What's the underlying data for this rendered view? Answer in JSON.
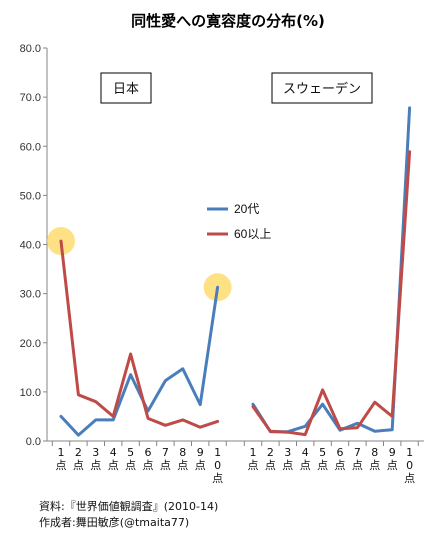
{
  "chart_data": {
    "type": "line",
    "title": "同性愛への寛容度の分布(%)",
    "ylim": [
      0,
      80
    ],
    "yticks": [
      "0.0",
      "10.0",
      "20.0",
      "30.0",
      "40.0",
      "50.0",
      "60.0",
      "70.0",
      "80.0"
    ],
    "grid": false,
    "legend_position": "center",
    "categories": [
      "1点",
      "2点",
      "3点",
      "4点",
      "5点",
      "6点",
      "7点",
      "8点",
      "9点",
      "10点"
    ],
    "panels": [
      {
        "label": "日本",
        "series": [
          {
            "name": "20代",
            "color": "#4a7ebb",
            "values": [
              5.0,
              1.2,
              4.3,
              4.3,
              13.5,
              6.1,
              12.3,
              14.7,
              7.4,
              31.3
            ]
          },
          {
            "name": "60以上",
            "color": "#be4b48",
            "values": [
              40.7,
              9.4,
              8.0,
              5.0,
              17.7,
              4.6,
              3.2,
              4.3,
              2.8,
              4.0
            ]
          }
        ],
        "highlights": [
          0,
          9
        ]
      },
      {
        "label": "スウェーデン",
        "series": [
          {
            "name": "20代",
            "color": "#4a7ebb",
            "values": [
              7.5,
              1.9,
              1.9,
              3.0,
              7.5,
              2.2,
              3.6,
              2.0,
              2.3,
              67.8
            ]
          },
          {
            "name": "60以上",
            "color": "#be4b48",
            "values": [
              7.0,
              2.0,
              1.8,
              1.3,
              10.4,
              2.5,
              2.7,
              7.9,
              5.0,
              58.9
            ]
          }
        ],
        "highlights": []
      }
    ],
    "legend": [
      {
        "name": "20代",
        "color": "#4a7ebb"
      },
      {
        "name": "60以上",
        "color": "#be4b48"
      }
    ],
    "axis_color": "#868686",
    "highlight_color": "#ffd966"
  },
  "notes": {
    "source": "資料:『世界価値観調査』(2010-14)",
    "author": "作成者:舞田敏彦(@tmaita77)"
  }
}
